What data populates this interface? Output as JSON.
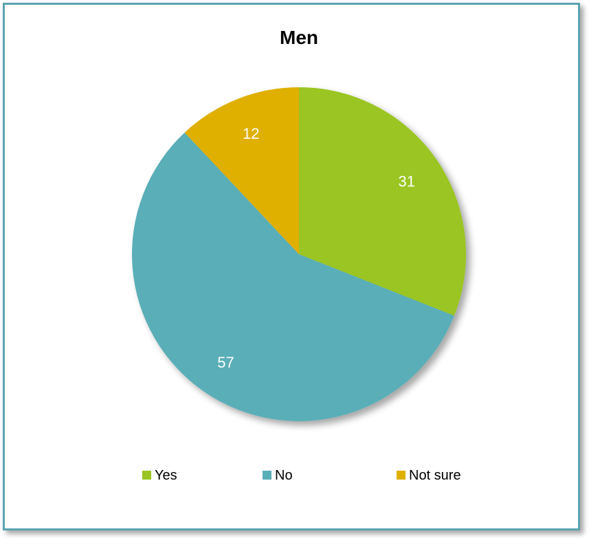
{
  "chart_data": {
    "type": "pie",
    "title": "Men",
    "categories": [
      "Yes",
      "No",
      "Not sure"
    ],
    "values": [
      31,
      57,
      12
    ],
    "colors": [
      "#9ac523",
      "#5aaeb7",
      "#dfb000"
    ],
    "data_labels": [
      "31",
      "57",
      "12"
    ],
    "start_angle_deg": 0,
    "direction": "clockwise",
    "legend": {
      "position": "bottom",
      "entries": [
        "Yes",
        "No",
        "Not sure"
      ]
    }
  }
}
